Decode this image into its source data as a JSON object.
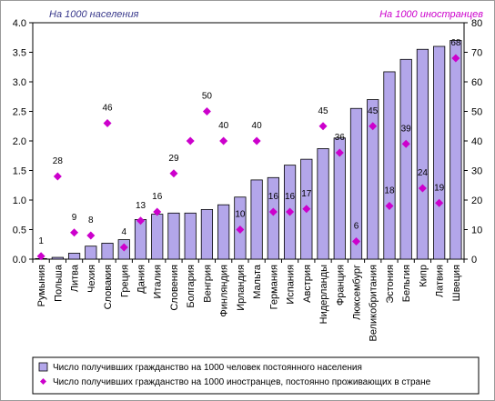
{
  "chart_data": {
    "type": "bar",
    "y_left_title": "На 1000 населения",
    "y_right_title": "На 1000 иностранцев",
    "y_left_ticks": [
      "0.0",
      "0.5",
      "1.0",
      "1.5",
      "2.0",
      "2.5",
      "3.0",
      "3.5",
      "4.0"
    ],
    "y_right_ticks": [
      "0",
      "10",
      "20",
      "30",
      "40",
      "50",
      "60",
      "70",
      "80"
    ],
    "ylim_left": [
      0,
      4.0
    ],
    "ylim_right": [
      0,
      80
    ],
    "categories": [
      "Румыния",
      "Польша",
      "Литва",
      "Чехия",
      "Словакия",
      "Греция",
      "Дания",
      "Италия",
      "Словения",
      "Болгария",
      "Венгрия",
      "Финляндия",
      "Ирландия",
      "Мальта",
      "Германия",
      "Испания",
      "Австрия",
      "Нидерланды",
      "Франция",
      "Люксембург",
      "Великобритания",
      "Эстония",
      "Бельгия",
      "Кипр",
      "Латвия",
      "Швеция"
    ],
    "series": [
      {
        "name": "Число получивших гражданство на 1000 человек постоянного населения",
        "axis": "left",
        "mark": "bar",
        "color": "#b3a6ea",
        "values": [
          0.01,
          0.03,
          0.1,
          0.22,
          0.27,
          0.33,
          0.67,
          0.76,
          0.78,
          0.78,
          0.84,
          0.92,
          1.05,
          1.34,
          1.38,
          1.59,
          1.69,
          1.87,
          2.05,
          2.55,
          2.7,
          3.17,
          3.38,
          3.55,
          3.6,
          3.7
        ]
      },
      {
        "name": "Число получивших гражданство на 1000 иностранцев, постоянно проживающих в стране",
        "axis": "right",
        "mark": "diamond",
        "color": "#cc00cc",
        "values": [
          1,
          28,
          9,
          8,
          46,
          4,
          13,
          16,
          29,
          40,
          50,
          40,
          10,
          40,
          16,
          16,
          17,
          45,
          36,
          6,
          45,
          18,
          39,
          24,
          19,
          68
        ],
        "labels": [
          "1",
          "28",
          "9",
          "8",
          "46",
          "4",
          "13",
          "16",
          "29",
          "",
          "50",
          "40",
          "10",
          "40",
          "16",
          "16",
          "17",
          "45",
          "36",
          "6",
          "45",
          "18",
          "39",
          "24",
          "19",
          "68"
        ]
      }
    ],
    "legend_position": "bottom",
    "grid": false
  }
}
